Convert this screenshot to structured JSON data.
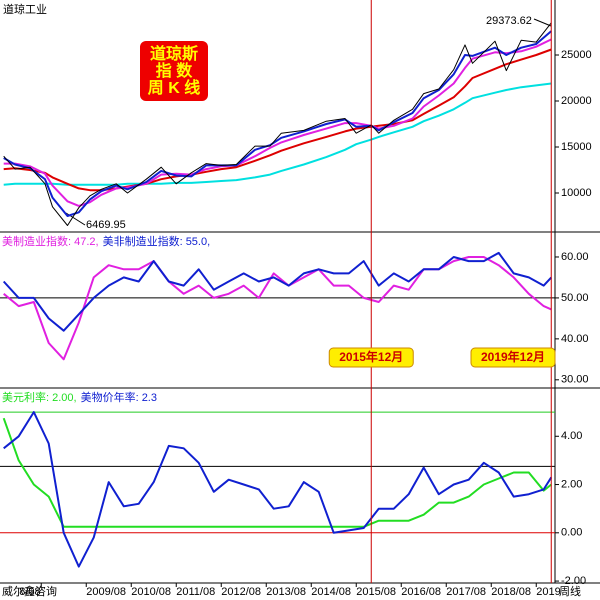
{
  "chart_data": [
    {
      "type": "line",
      "title": "道琼工业",
      "badge": [
        "道琼斯",
        "指 数",
        "周 K 线"
      ],
      "annotations": [
        "29373.62",
        "6469.95"
      ],
      "xlim": [
        "2007/09",
        "2020/01"
      ],
      "ylim": [
        5760,
        30980
      ],
      "yticks": [
        10000,
        15000,
        20000,
        25000
      ],
      "x": [
        "2007/10",
        "2008/01",
        "2008/05",
        "2008/09",
        "2008/11",
        "2009/03",
        "2009/06",
        "2009/09",
        "2009/12",
        "2010/04",
        "2010/07",
        "2010/12",
        "2011/04",
        "2011/08",
        "2011/12",
        "2012/04",
        "2012/08",
        "2012/12",
        "2013/05",
        "2013/09",
        "2013/12",
        "2014/06",
        "2014/12",
        "2015/05",
        "2015/08",
        "2015/12",
        "2016/02",
        "2016/06",
        "2016/11",
        "2017/02",
        "2017/06",
        "2017/10",
        "2018/01",
        "2018/03",
        "2018/09",
        "2018/12",
        "2019/04",
        "2019/08",
        "2019/12"
      ],
      "series": [
        {
          "color": "#00e0e0",
          "values": [
            10900,
            11000,
            11000,
            11000,
            11000,
            10900,
            10900,
            10900,
            10900,
            10900,
            11000,
            11000,
            11000,
            11100,
            11100,
            11200,
            11300,
            11400,
            11700,
            12000,
            12400,
            13100,
            13900,
            14700,
            15300,
            15800,
            16100,
            16600,
            17200,
            17800,
            18400,
            19100,
            19800,
            20300,
            20900,
            21200,
            21500,
            21700,
            21900
          ]
        },
        {
          "color": "#dd0000",
          "values": [
            12600,
            12700,
            12500,
            12200,
            11700,
            11000,
            10500,
            10300,
            10300,
            10500,
            10700,
            11000,
            11500,
            11800,
            12000,
            12300,
            12600,
            12800,
            13500,
            14100,
            14600,
            15400,
            16100,
            16700,
            17000,
            17200,
            17300,
            17500,
            17900,
            18600,
            19500,
            20400,
            21600,
            22500,
            23500,
            24000,
            24500,
            25000,
            25600
          ]
        },
        {
          "color": "#e020e0",
          "values": [
            13200,
            13200,
            12900,
            12100,
            10800,
            9100,
            8600,
            9000,
            9800,
            10500,
            10600,
            11000,
            12000,
            12100,
            12000,
            12600,
            12900,
            13000,
            14000,
            14900,
            15500,
            16300,
            17000,
            17600,
            17600,
            17300,
            17000,
            17300,
            18100,
            19400,
            20600,
            21900,
            23600,
            24600,
            25300,
            25200,
            25400,
            25900,
            26700
          ]
        },
        {
          "color": "#1020d0",
          "values": [
            13800,
            13100,
            12700,
            11500,
            9500,
            7500,
            7900,
            9300,
            10200,
            10800,
            10400,
            11200,
            12400,
            11900,
            11800,
            13000,
            13000,
            13000,
            14700,
            15200,
            16000,
            16700,
            17500,
            18000,
            17200,
            17300,
            16800,
            17700,
            18700,
            20300,
            21200,
            22900,
            25000,
            24900,
            25800,
            25000,
            25800,
            26200,
            27600
          ]
        },
        {
          "color": "#000000",
          "values": [
            14000,
            12600,
            12800,
            11000,
            8500,
            6470,
            8400,
            9700,
            10400,
            11000,
            10000,
            11500,
            12800,
            11000,
            12200,
            13200,
            13000,
            13100,
            15100,
            15100,
            16500,
            16800,
            17800,
            18100,
            16500,
            17400,
            16500,
            17900,
            19100,
            20800,
            21300,
            23400,
            26100,
            24100,
            26500,
            23300,
            26600,
            26400,
            28500
          ]
        }
      ]
    },
    {
      "type": "line",
      "xlim": [
        "2007/09",
        "2020/01"
      ],
      "ylim": [
        28,
        66.1
      ],
      "yticks": [
        {
          "value": 60,
          "label": "60.00"
        },
        {
          "value": 50,
          "label": "50.00"
        },
        {
          "value": 40,
          "label": "40.00"
        },
        {
          "value": 30,
          "label": "30.00"
        }
      ],
      "ref_lines": [
        50
      ],
      "x": [
        "2007/10",
        "2008/02",
        "2008/06",
        "2008/10",
        "2009/02",
        "2009/06",
        "2009/10",
        "2010/02",
        "2010/06",
        "2010/10",
        "2011/02",
        "2011/06",
        "2011/10",
        "2012/02",
        "2012/06",
        "2012/10",
        "2013/02",
        "2013/06",
        "2013/10",
        "2014/02",
        "2014/06",
        "2014/10",
        "2015/02",
        "2015/06",
        "2015/10",
        "2016/02",
        "2016/06",
        "2016/10",
        "2017/02",
        "2017/06",
        "2017/10",
        "2018/02",
        "2018/06",
        "2018/10",
        "2019/02",
        "2019/06",
        "2019/10",
        "2019/12"
      ],
      "series": [
        {
          "name": "美制造业指数: 47.2,",
          "color": "#e020e0",
          "values": [
            51,
            48,
            49,
            39,
            35,
            44,
            55,
            58,
            57,
            57,
            59,
            54,
            51,
            53,
            50,
            51,
            53,
            50,
            56,
            53,
            55,
            57,
            53,
            53,
            50,
            49,
            53,
            52,
            57,
            57,
            59,
            60,
            60,
            58,
            55,
            51,
            48,
            47.2
          ]
        },
        {
          "name": "美非制造业指数: 55.0,",
          "color": "#1020d0",
          "values": [
            54,
            50,
            50,
            45,
            42,
            46,
            50,
            53,
            55,
            54,
            59,
            54,
            53,
            57,
            52,
            54,
            56,
            54,
            55,
            53,
            56,
            57,
            56,
            56,
            59,
            53,
            56,
            54,
            57,
            57,
            60,
            59,
            59,
            61,
            56,
            55,
            53,
            55
          ]
        }
      ]
    },
    {
      "type": "line",
      "xlim": [
        "2007/09",
        "2020/01"
      ],
      "ylim": [
        -2.08,
        6
      ],
      "yticks": [
        {
          "value": 4,
          "label": "4.00"
        },
        {
          "value": 2,
          "label": "2.00"
        },
        {
          "value": 0,
          "label": "0.00"
        },
        {
          "value": -2,
          "label": "-2.00"
        }
      ],
      "ref_lines": [
        5,
        2.75,
        0
      ],
      "xticks": [
        {
          "value": "2008/08",
          "label": "8/08"
        },
        "2009/08",
        "2010/08",
        "2011/08",
        "2012/08",
        "2013/08",
        "2014/08",
        "2015/08",
        "2016/08",
        "2017/08",
        "2018/08",
        {
          "value": "2019/08",
          "label": "2019"
        }
      ],
      "x": [
        "2007/10",
        "2008/02",
        "2008/06",
        "2008/10",
        "2009/02",
        "2009/06",
        "2009/10",
        "2010/02",
        "2010/06",
        "2010/10",
        "2011/02",
        "2011/06",
        "2011/10",
        "2012/02",
        "2012/06",
        "2012/10",
        "2013/02",
        "2013/06",
        "2013/10",
        "2014/02",
        "2014/06",
        "2014/10",
        "2015/02",
        "2015/06",
        "2015/10",
        "2016/02",
        "2016/06",
        "2016/10",
        "2017/02",
        "2017/06",
        "2017/10",
        "2018/02",
        "2018/06",
        "2018/10",
        "2019/02",
        "2019/06",
        "2019/10",
        "2019/12"
      ],
      "series": [
        {
          "name": "美元利率: 2.00,",
          "color": "#22dd22",
          "values": [
            4.75,
            3,
            2,
            1.5,
            0.25,
            0.25,
            0.25,
            0.25,
            0.25,
            0.25,
            0.25,
            0.25,
            0.25,
            0.25,
            0.25,
            0.25,
            0.25,
            0.25,
            0.25,
            0.25,
            0.25,
            0.25,
            0.25,
            0.25,
            0.25,
            0.5,
            0.5,
            0.5,
            0.75,
            1.25,
            1.25,
            1.5,
            2,
            2.25,
            2.5,
            2.5,
            1.75,
            2
          ]
        },
        {
          "name": "美物价年率: 2.3",
          "color": "#1020d0",
          "values": [
            3.5,
            4,
            5,
            3.7,
            0,
            -1.4,
            -0.2,
            2.1,
            1.1,
            1.2,
            2.1,
            3.6,
            3.5,
            2.9,
            1.7,
            2.2,
            2,
            1.8,
            1,
            1.1,
            2.1,
            1.7,
            0,
            0.1,
            0.2,
            1,
            1,
            1.6,
            2.7,
            1.6,
            2,
            2.2,
            2.9,
            2.5,
            1.5,
            1.6,
            1.8,
            2.3
          ]
        }
      ]
    }
  ],
  "markers": [
    {
      "x": "2015/12",
      "label": "2015年12月"
    },
    {
      "x": "2019/12",
      "label": "2019年12月"
    }
  ],
  "footer": {
    "source": "威尔鑫咨询",
    "period": "周线"
  }
}
